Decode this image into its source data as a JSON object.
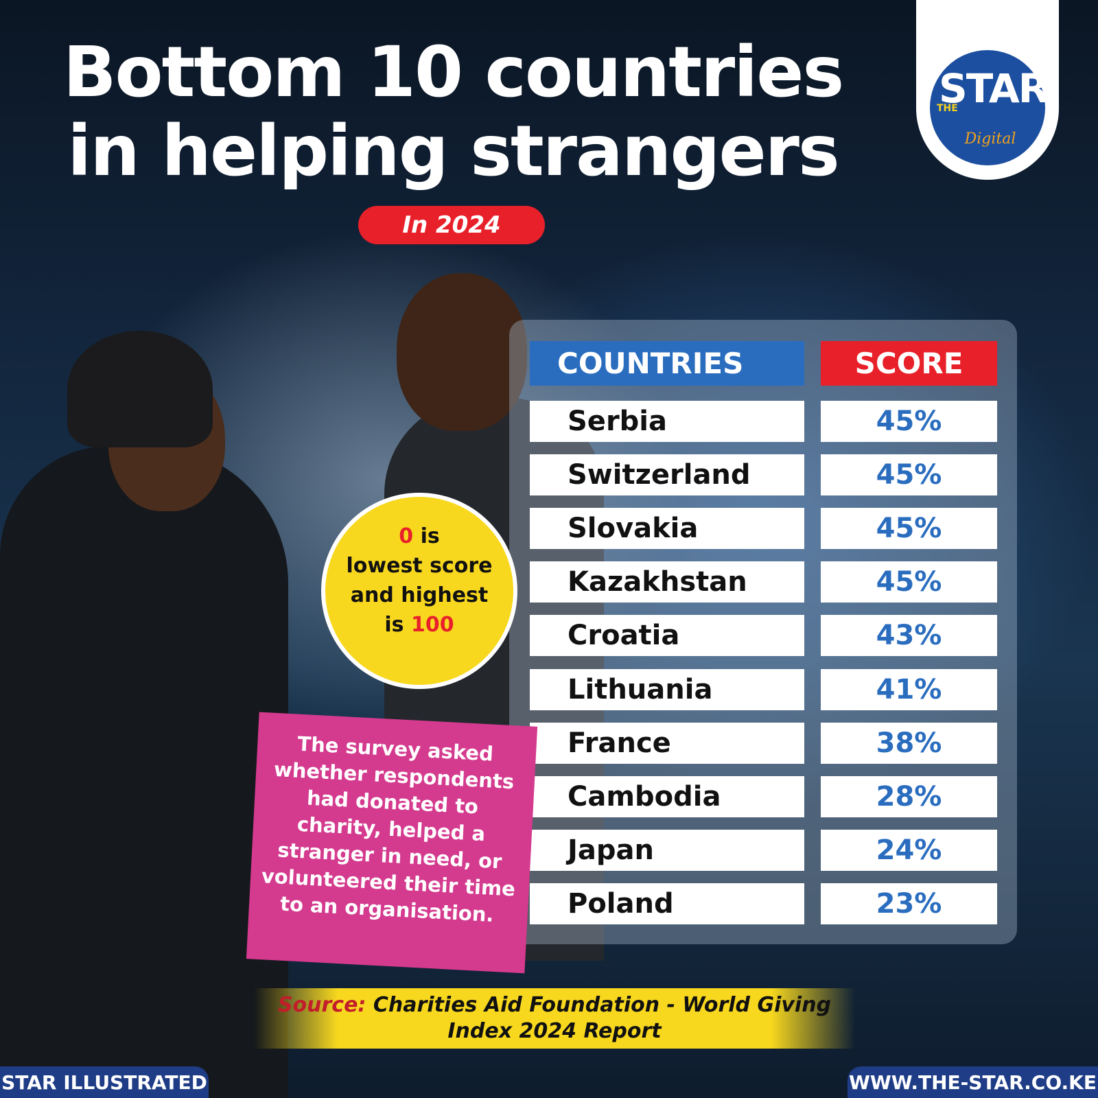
{
  "header": {
    "title_line1": "Bottom 10 countries",
    "title_line2": "in helping strangers",
    "year_badge": "In 2024"
  },
  "logo": {
    "the": "THE",
    "name": "STAR",
    "sub": "Digital"
  },
  "chart_data": {
    "type": "table",
    "title": "Bottom 10 countries in helping strangers",
    "subtitle": "In 2024",
    "columns": [
      "COUNTRIES",
      "SCORE"
    ],
    "rows": [
      {
        "country": "Serbia",
        "score": "45%"
      },
      {
        "country": "Switzerland",
        "score": "45%"
      },
      {
        "country": "Slovakia",
        "score": "45%"
      },
      {
        "country": "Kazakhstan",
        "score": "45%"
      },
      {
        "country": "Croatia",
        "score": "43%"
      },
      {
        "country": "Lithuania",
        "score": "41%"
      },
      {
        "country": "France",
        "score": "38%"
      },
      {
        "country": "Cambodia",
        "score": "28%"
      },
      {
        "country": "Japan",
        "score": "24%"
      },
      {
        "country": "Poland",
        "score": "23%"
      }
    ]
  },
  "sticker": {
    "zero": "0",
    "line1_rest": " is",
    "line2": "lowest score",
    "line3": "and highest",
    "line4_pre": "is ",
    "hundred": "100"
  },
  "note": {
    "text": "The survey asked whether respondents had donated to charity, helped a stranger in need, or volunteered their time to an organisation."
  },
  "source": {
    "label": "Source:",
    "text": " Charities Aid Foundation - World Giving Index 2024 Report"
  },
  "footer": {
    "left": "STAR ILLUSTRATED",
    "right": "WWW.THE-STAR.CO.KE"
  },
  "colors": {
    "accent_blue": "#2a6dbf",
    "accent_red": "#e8202a",
    "sticker_yellow": "#f8d81e",
    "note_pink": "#d43a8e",
    "footer_navy": "#1f3d86"
  }
}
